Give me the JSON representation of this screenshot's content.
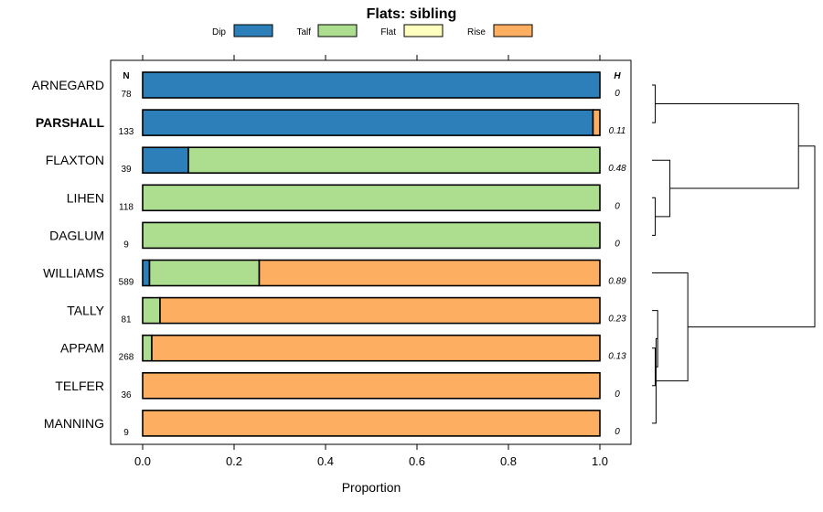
{
  "chart_data": {
    "type": "bar",
    "orientation": "horizontal",
    "stacked": true,
    "title": "Flats: sibling",
    "xlabel": "Proportion",
    "ylabel": "",
    "xlim": [
      0,
      1
    ],
    "x_ticks": [
      "0.0",
      "0.2",
      "0.4",
      "0.6",
      "0.8",
      "1.0"
    ],
    "n_header": "N",
    "h_header": "H",
    "legend": [
      {
        "name": "Dip",
        "color": "#2c7fb8"
      },
      {
        "name": "Talf",
        "color": "#addd8e"
      },
      {
        "name": "Flat",
        "color": "#ffffbf"
      },
      {
        "name": "Rise",
        "color": "#fdae61"
      }
    ],
    "categories": [
      "ARNEGARD",
      "PARSHALL",
      "FLAXTON",
      "LIHEN",
      "DAGLUM",
      "WILLIAMS",
      "TALLY",
      "APPAM",
      "TELFER",
      "MANNING"
    ],
    "highlighted": "PARSHALL",
    "n_values": [
      "78",
      "133",
      "39",
      "118",
      "9",
      "589",
      "81",
      "268",
      "36",
      "9"
    ],
    "h_values": [
      "0",
      "0.11",
      "0.48",
      "0",
      "0",
      "0.89",
      "0.23",
      "0.13",
      "0",
      "0"
    ],
    "series": [
      {
        "name": "Dip",
        "values": [
          1.0,
          0.985,
          0.1,
          0,
          0,
          0.015,
          0,
          0,
          0,
          0
        ]
      },
      {
        "name": "Talf",
        "values": [
          0,
          0,
          0.9,
          1.0,
          1.0,
          0.24,
          0.038,
          0.02,
          0,
          0
        ]
      },
      {
        "name": "Flat",
        "values": [
          0,
          0,
          0,
          0,
          0,
          0,
          0,
          0,
          0,
          0
        ]
      },
      {
        "name": "Rise",
        "values": [
          0,
          0.015,
          0,
          0,
          0,
          0.745,
          0.962,
          0.98,
          1.0,
          1.0
        ]
      }
    ],
    "dendrogram": {
      "leaf_order": [
        "ARNEGARD",
        "PARSHALL",
        "FLAXTON",
        "LIHEN",
        "DAGLUM",
        "WILLIAMS",
        "TALLY",
        "APPAM",
        "TELFER",
        "MANNING"
      ],
      "merges": [
        {
          "a": "L3",
          "b": "L4",
          "height": 0.02
        },
        {
          "a": "L7",
          "b": "L8",
          "height": 0.02
        },
        {
          "a": "L6",
          "b": "M1",
          "height": 0.035
        },
        {
          "a": "L0",
          "b": "L1",
          "height": 0.02
        },
        {
          "a": "L2",
          "b": "M0",
          "height": 0.11
        },
        {
          "a": "M2",
          "b": "L9",
          "height": 0.025
        },
        {
          "a": "M5",
          "b": "L5",
          "height": 0.22
        },
        {
          "a": "M4",
          "b": "M3",
          "height": 0.9
        },
        {
          "a": "M7",
          "b": "M6",
          "height": 1.0
        }
      ]
    }
  }
}
